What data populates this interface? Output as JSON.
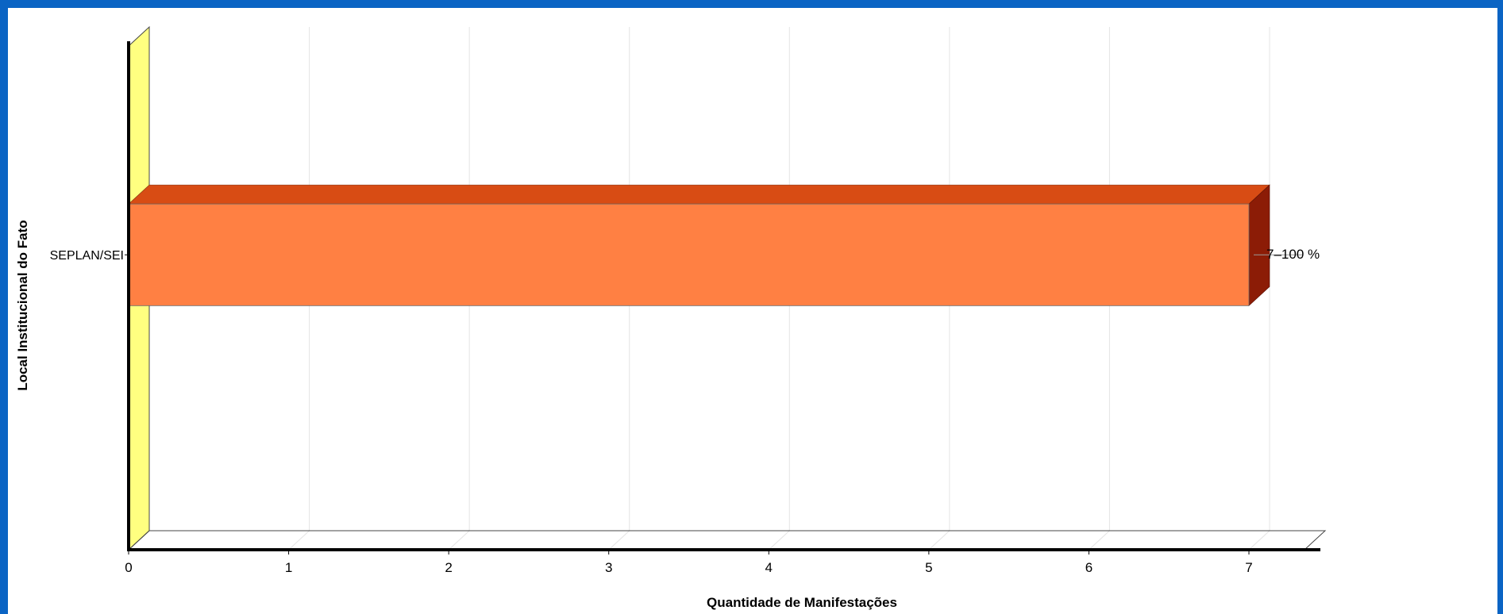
{
  "chart_data": {
    "type": "bar",
    "orientation": "horizontal",
    "style": "3d",
    "categories": [
      "SEPLAN/SEI"
    ],
    "values": [
      7
    ],
    "data_labels": [
      "7–100 %"
    ],
    "xlabel": "Quantidade de Manifestações",
    "ylabel": "Local Institucional do Fato",
    "xlim": [
      0,
      7
    ],
    "x_ticks": [
      "0",
      "1",
      "2",
      "3",
      "4",
      "5",
      "6",
      "7"
    ],
    "grid": true,
    "colors": {
      "bar_front": "#ff8043",
      "bar_top": "#d84c14",
      "bar_side": "#8c1c06",
      "left_wall": "#ffff80",
      "frame_background": "#0a64c4"
    }
  }
}
